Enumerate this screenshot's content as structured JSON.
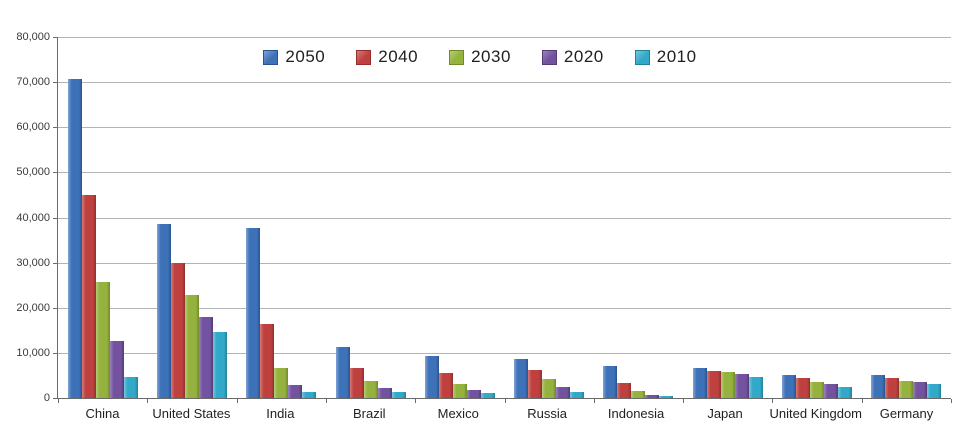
{
  "chart_data": {
    "type": "bar",
    "title": "",
    "xlabel": "",
    "ylabel": "",
    "ylim": [
      0,
      80000
    ],
    "ytick_interval": 10000,
    "ytick_labels": [
      "0",
      "10,000",
      "20,000",
      "30,000",
      "40,000",
      "50,000",
      "60,000",
      "70,000",
      "80,000"
    ],
    "grid": "horizontal",
    "legend_position": "top-center",
    "categories": [
      "China",
      "United States",
      "India",
      "Brazil",
      "Mexico",
      "Russia",
      "Indonesia",
      "Japan",
      "United Kingdom",
      "Germany"
    ],
    "series": [
      {
        "name": "2050",
        "color": "#3E72B8",
        "color_light": "#7FA3D4",
        "color_dark": "#2A5390",
        "values": [
          70710,
          38514,
          37668,
          11366,
          9340,
          8580,
          7010,
          6677,
          5133,
          5024
        ]
      },
      {
        "name": "2040",
        "color": "#BE4140",
        "color_light": "#D47C77",
        "color_dark": "#8F2F2E",
        "values": [
          45022,
          29823,
          16510,
          6631,
          5471,
          6320,
          3286,
          6042,
          4344,
          4388
        ]
      },
      {
        "name": "2030",
        "color": "#94B23D",
        "color_light": "#B5CC75",
        "color_dark": "#6F892B",
        "values": [
          25610,
          22817,
          6683,
          3720,
          3068,
          4265,
          1479,
          5814,
          3595,
          3761
        ]
      },
      {
        "name": "2020",
        "color": "#73529F",
        "color_light": "#9B82BC",
        "color_dark": "#543B77",
        "values": [
          12630,
          17978,
          2848,
          2194,
          1742,
          2554,
          752,
          5224,
          3101,
          3519
        ]
      },
      {
        "name": "2010",
        "color": "#32A9C8",
        "color_light": "#76C6DC",
        "color_dark": "#22809B",
        "values": [
          4667,
          14535,
          1256,
          1346,
          1009,
          1371,
          419,
          4604,
          2546,
          3083
        ]
      }
    ]
  },
  "colors": {
    "background": "#FFFFFF",
    "gridline": "#B3B3B3",
    "axis": "#6A6A6A",
    "tick_label": "#3A3A3A",
    "category_label": "#1F1F1F",
    "legend_label": "#1F1F1F"
  }
}
